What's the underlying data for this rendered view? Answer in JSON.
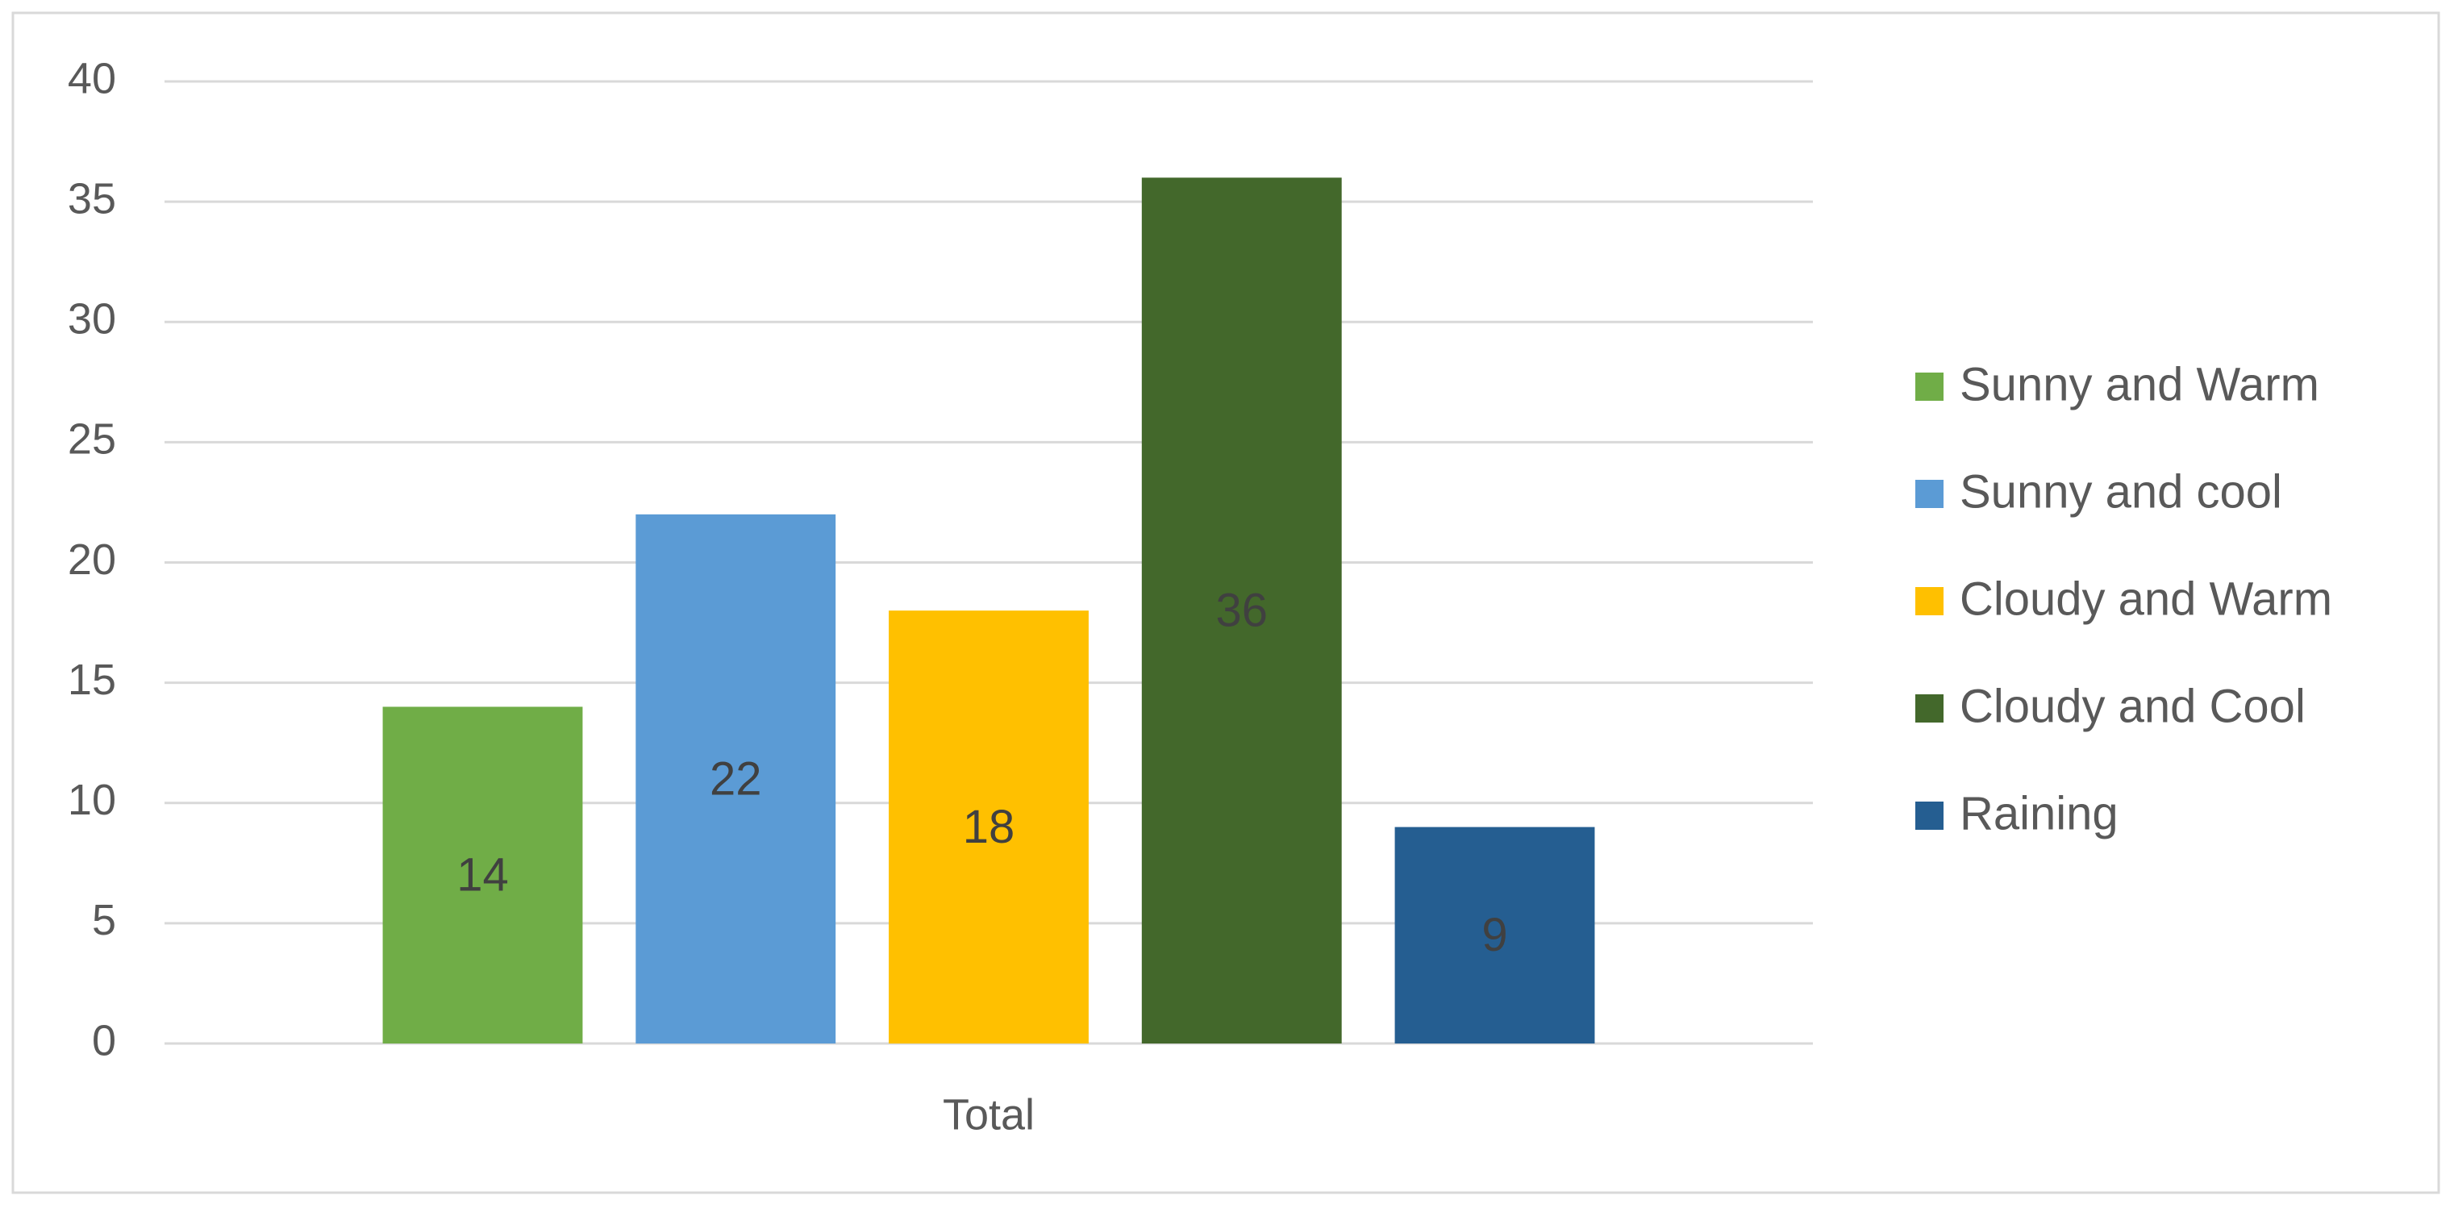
{
  "chart_data": {
    "type": "bar",
    "categories": [
      "Total"
    ],
    "series": [
      {
        "name": "Sunny and Warm",
        "color": "#70ad47",
        "values": [
          14
        ]
      },
      {
        "name": "Sunny and cool",
        "color": "#5b9bd5",
        "values": [
          22
        ]
      },
      {
        "name": "Cloudy and Warm",
        "color": "#ffc000",
        "values": [
          18
        ]
      },
      {
        "name": "Cloudy and Cool",
        "color": "#43682b",
        "values": [
          36
        ]
      },
      {
        "name": "Raining",
        "color": "#255e91",
        "values": [
          9
        ]
      }
    ],
    "ylim": [
      0,
      40
    ],
    "yticks": [
      0,
      5,
      10,
      15,
      20,
      25,
      30,
      35,
      40
    ],
    "grid": true,
    "legend": "right",
    "data_labels": true
  }
}
